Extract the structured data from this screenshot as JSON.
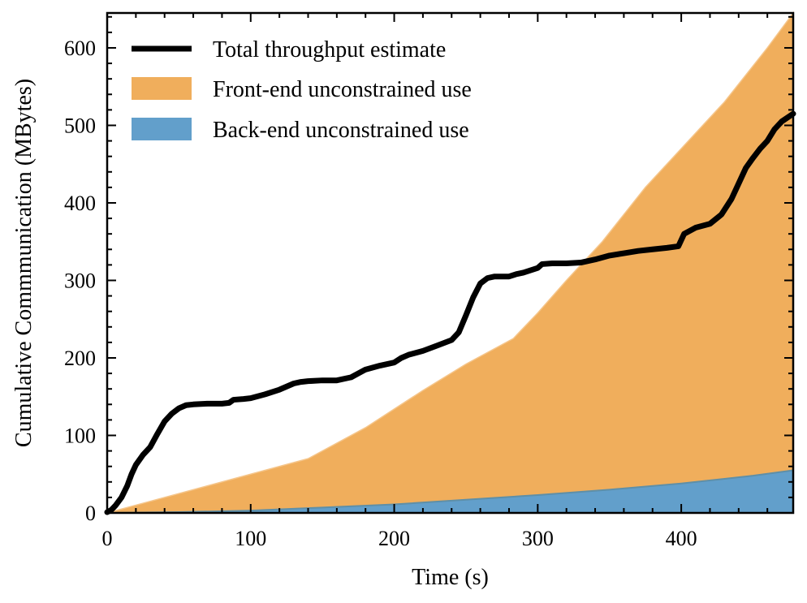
{
  "chart_data": {
    "type": "area",
    "title": "",
    "xlabel": "Time (s)",
    "ylabel": "Cumulative Commmunication (MBytes)",
    "xlim": [
      0,
      478
    ],
    "ylim": [
      0,
      645
    ],
    "xticks": [
      0,
      100,
      200,
      300,
      400
    ],
    "yticks": [
      0,
      100,
      200,
      300,
      400,
      500,
      600
    ],
    "x_minor_step": 20,
    "y_minor_step": 20,
    "grid": false,
    "legend_position": "top-left",
    "colors": {
      "total": "#000000",
      "front_end": "#F0AE5C",
      "back_end": "#629FCB"
    },
    "series": [
      {
        "name": "Total throughput estimate",
        "kind": "line",
        "x": [
          0,
          3,
          6,
          10,
          14,
          17,
          20,
          25,
          30,
          35,
          40,
          45,
          50,
          55,
          60,
          70,
          80,
          85,
          88,
          95,
          100,
          110,
          120,
          130,
          135,
          140,
          150,
          160,
          170,
          175,
          180,
          190,
          200,
          205,
          210,
          220,
          230,
          240,
          245,
          250,
          255,
          260,
          265,
          270,
          280,
          285,
          290,
          300,
          303,
          310,
          320,
          330,
          340,
          350,
          360,
          370,
          380,
          390,
          398,
          402,
          410,
          420,
          428,
          435,
          440,
          445,
          450,
          455,
          460,
          465,
          470,
          478
        ],
        "values": [
          1,
          4,
          10,
          20,
          35,
          50,
          62,
          75,
          85,
          102,
          118,
          128,
          135,
          139,
          140,
          141,
          141,
          142,
          146,
          147,
          148,
          153,
          159,
          167,
          169,
          170,
          171,
          171,
          175,
          180,
          185,
          190,
          194,
          200,
          204,
          209,
          216,
          223,
          233,
          255,
          278,
          296,
          303,
          305,
          305,
          308,
          310,
          316,
          321,
          322,
          322,
          323,
          327,
          332,
          335,
          338,
          340,
          342,
          344,
          360,
          368,
          373,
          385,
          405,
          425,
          445,
          458,
          470,
          480,
          495,
          505,
          515
        ]
      },
      {
        "name": "Front-end unconstrained use",
        "kind": "area",
        "x": [
          0,
          20,
          60,
          100,
          140,
          180,
          220,
          250,
          283,
          300,
          320,
          345,
          360,
          375,
          400,
          430,
          460,
          478
        ],
        "values": [
          0,
          10,
          30,
          50,
          70,
          110,
          158,
          192,
          225,
          258,
          300,
          350,
          385,
          420,
          470,
          530,
          600,
          645
        ]
      },
      {
        "name": "Back-end unconstrained use",
        "kind": "area",
        "x": [
          0,
          50,
          100,
          150,
          200,
          250,
          300,
          350,
          400,
          450,
          478
        ],
        "values": [
          0,
          1,
          3,
          7,
          11,
          17,
          23,
          30,
          38,
          48,
          55
        ]
      }
    ]
  }
}
